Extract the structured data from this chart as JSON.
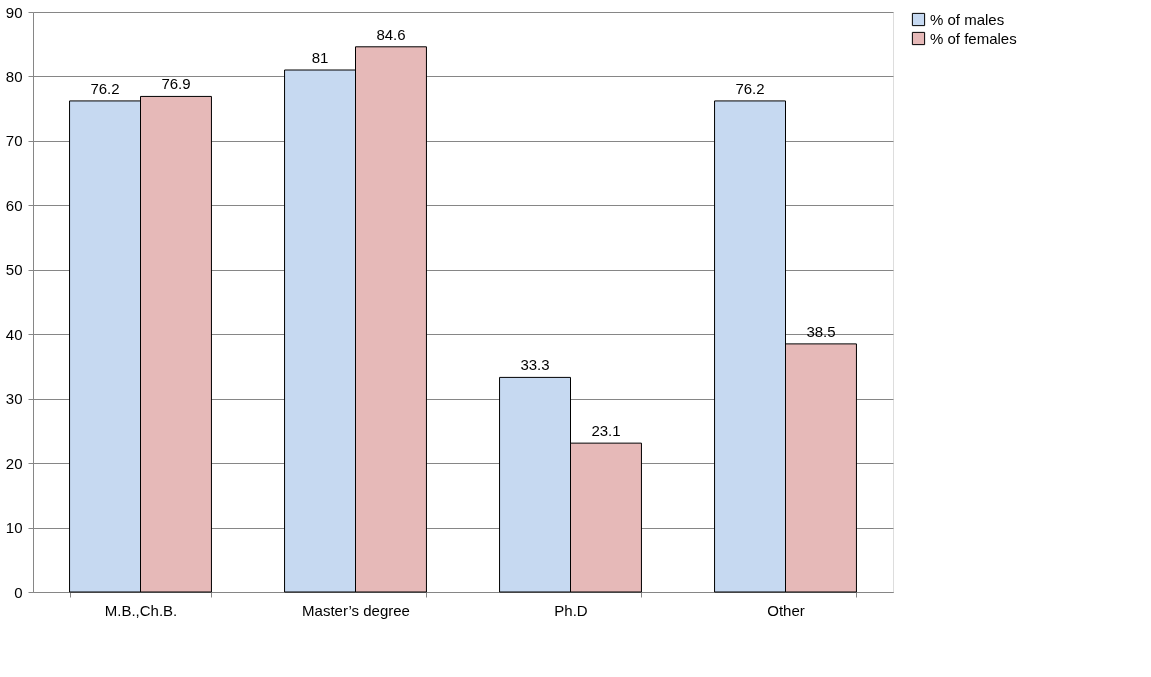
{
  "chart_data": {
    "type": "bar",
    "categories": [
      "M.B.,Ch.B.",
      "Master’s degree",
      "Ph.D",
      "Other"
    ],
    "series": [
      {
        "name": "% of males",
        "color": "#c6d9f1",
        "values": [
          76.2,
          81,
          33.3,
          76.2
        ]
      },
      {
        "name": "% of females",
        "color": "#e6b9b8",
        "values": [
          76.9,
          84.6,
          23.1,
          38.5
        ]
      }
    ],
    "ylim": [
      0,
      90
    ],
    "yticks": [
      0,
      10,
      20,
      30,
      40,
      50,
      60,
      70,
      80,
      90
    ],
    "grid": "y",
    "legend": "right",
    "data_labels": true
  }
}
